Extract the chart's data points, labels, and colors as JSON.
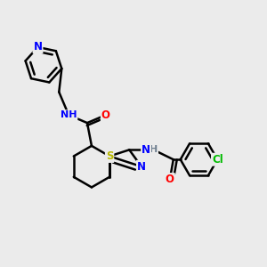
{
  "background_color": "#ebebeb",
  "bond_color": "#000000",
  "bond_width": 1.8,
  "dbo": 0.055,
  "atom_colors": {
    "N": "#0000ff",
    "O": "#ff0000",
    "S": "#b8b800",
    "Cl": "#00bb00",
    "H_gray": "#708090"
  },
  "font_size": 8.5,
  "figsize": [
    3.0,
    3.0
  ],
  "dpi": 100,
  "xlim": [
    -2.6,
    3.4
  ],
  "ylim": [
    -1.2,
    3.0
  ]
}
